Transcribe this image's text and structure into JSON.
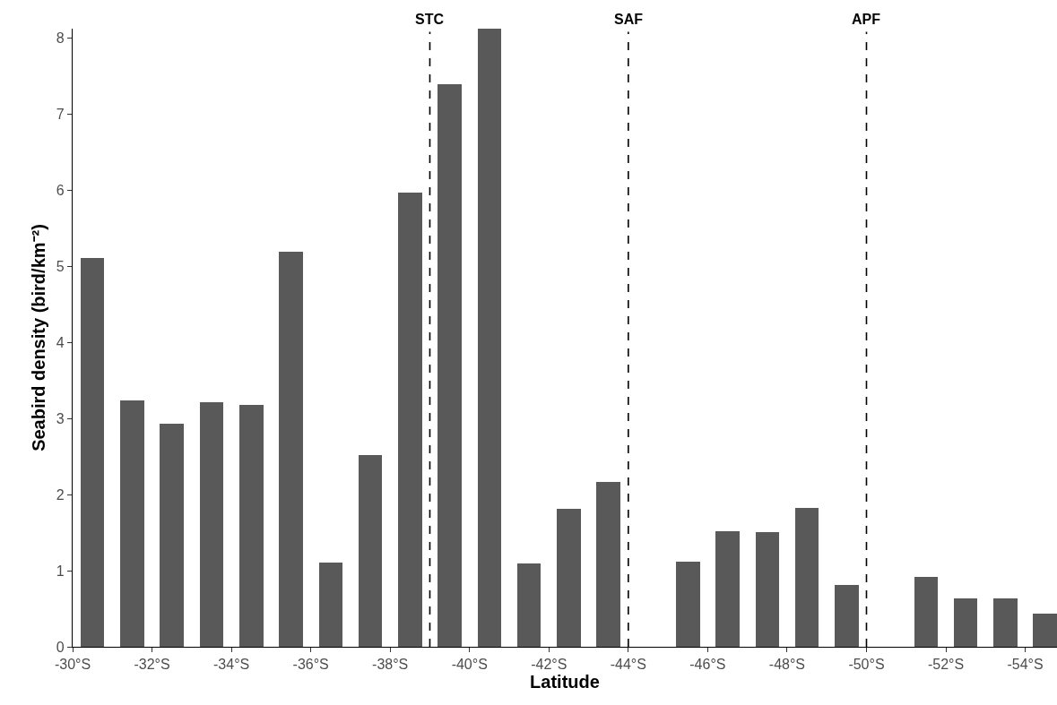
{
  "chart_data": {
    "type": "bar",
    "xlabel": "Latitude",
    "ylabel": "Seabird density (bird/km⁻²)",
    "x": [
      -30.5,
      -31.5,
      -32.5,
      -33.5,
      -34.5,
      -35.5,
      -36.5,
      -37.5,
      -38.5,
      -39.5,
      -40.5,
      -41.5,
      -42.5,
      -43.5,
      -44.5,
      -45.5,
      -46.5,
      -47.5,
      -48.5,
      -49.5,
      -50.5,
      -51.5,
      -52.5,
      -53.5,
      -54.5
    ],
    "values": [
      5.11,
      3.24,
      2.93,
      3.21,
      3.18,
      5.19,
      1.11,
      2.52,
      5.97,
      7.39,
      8.12,
      1.09,
      1.81,
      2.16,
      null,
      1.12,
      1.52,
      1.51,
      1.83,
      0.81,
      null,
      0.92,
      0.63,
      0.64,
      0.43
    ],
    "color": "#595959",
    "xlim": [
      -30,
      -54.8
    ],
    "xticks": [
      {
        "value": -30,
        "label": "-30°S"
      },
      {
        "value": -32,
        "label": "-32°S"
      },
      {
        "value": -34,
        "label": "-34°S"
      },
      {
        "value": -36,
        "label": "-36°S"
      },
      {
        "value": -38,
        "label": "-38°S"
      },
      {
        "value": -40,
        "label": "-40°S"
      },
      {
        "value": -42,
        "label": "-42°S"
      },
      {
        "value": -44,
        "label": "-44°S"
      },
      {
        "value": -46,
        "label": "-46°S"
      },
      {
        "value": -48,
        "label": "-48°S"
      },
      {
        "value": -50,
        "label": "-50°S"
      },
      {
        "value": -52,
        "label": "-52°S"
      },
      {
        "value": -54,
        "label": "-54°S"
      }
    ],
    "ylim": [
      0,
      8.12
    ],
    "yticks": [
      0,
      1,
      2,
      3,
      4,
      5,
      6,
      7,
      8
    ],
    "ref_lines": [
      {
        "axis": "x",
        "value": -39,
        "label": "STC",
        "line_style": "dashed",
        "color": "#000000"
      },
      {
        "axis": "x",
        "value": -44,
        "label": "SAF",
        "line_style": "dashed",
        "color": "#000000"
      },
      {
        "axis": "x",
        "value": -50,
        "label": "APF",
        "line_style": "dashed",
        "color": "#000000"
      }
    ],
    "grid": false
  }
}
